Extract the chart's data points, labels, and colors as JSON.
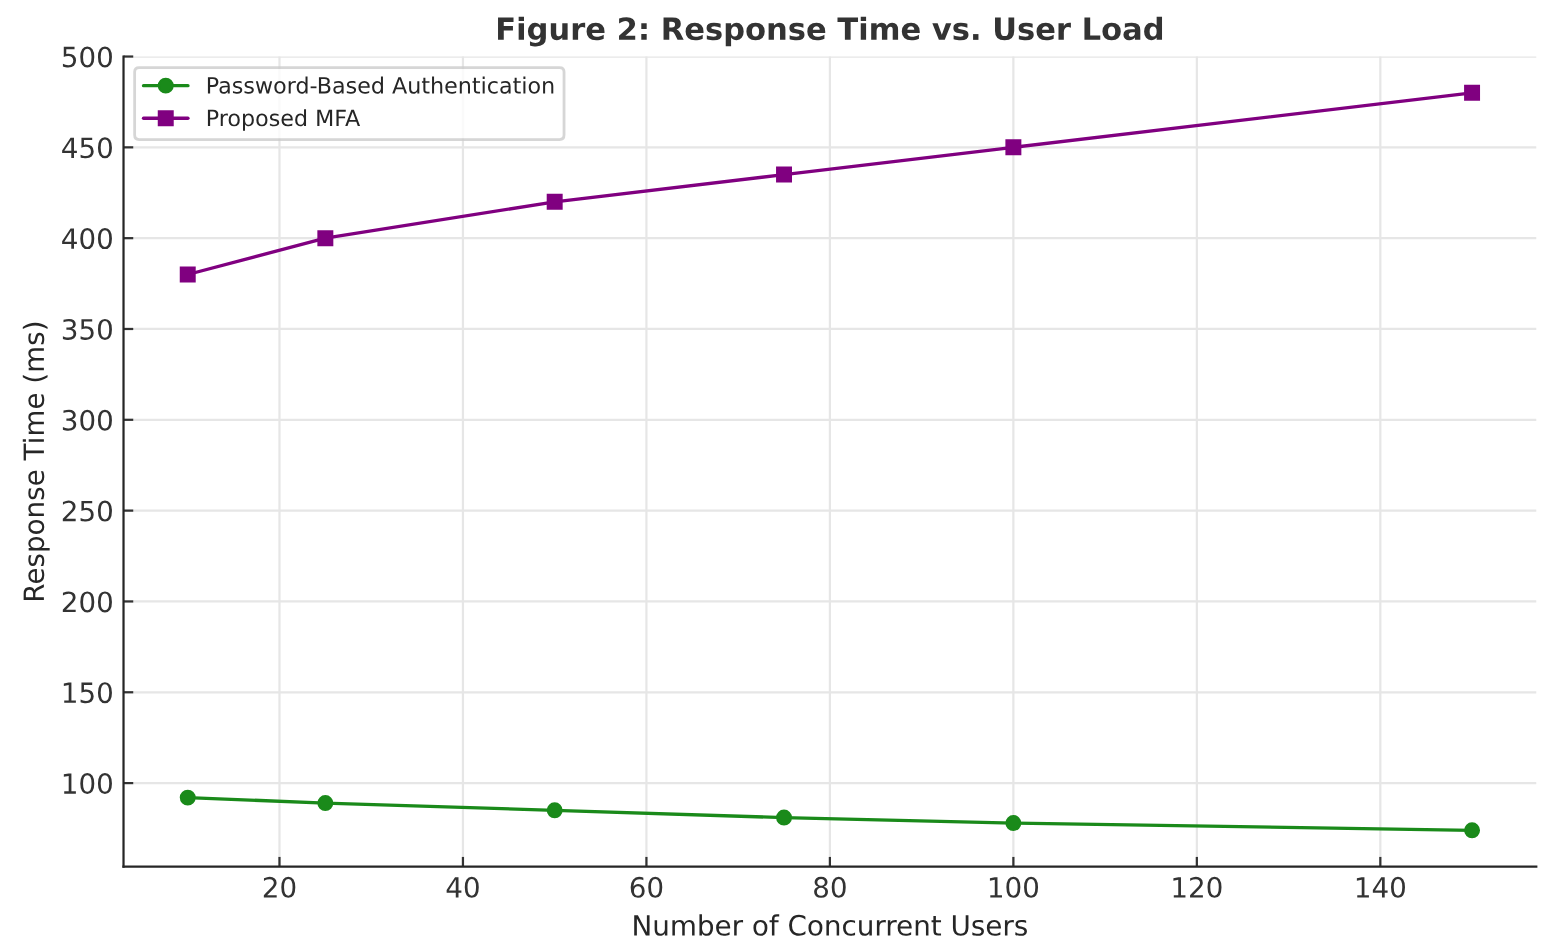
{
  "chart_data": {
    "type": "line",
    "title": "Figure 2: Response Time vs. User Load",
    "xlabel": "Number of Concurrent Users",
    "ylabel": "Response Time (ms)",
    "x": [
      10,
      25,
      50,
      75,
      100,
      150
    ],
    "series": [
      {
        "name": "Password-Based Authentication",
        "color": "#1a8a1a",
        "marker": "circle",
        "values": [
          92,
          89,
          85,
          81,
          78,
          74
        ]
      },
      {
        "name": "Proposed MFA",
        "color": "#800080",
        "marker": "square",
        "values": [
          380,
          400,
          420,
          435,
          450,
          480
        ]
      }
    ],
    "xlim": [
      3,
      157
    ],
    "xticks": [
      20,
      40,
      60,
      80,
      100,
      120,
      140
    ],
    "ylim": [
      54,
      500
    ],
    "yticks": [
      100,
      150,
      200,
      250,
      300,
      350,
      400,
      450,
      500
    ],
    "grid": true,
    "legend": "top left",
    "line_style": "solid"
  }
}
